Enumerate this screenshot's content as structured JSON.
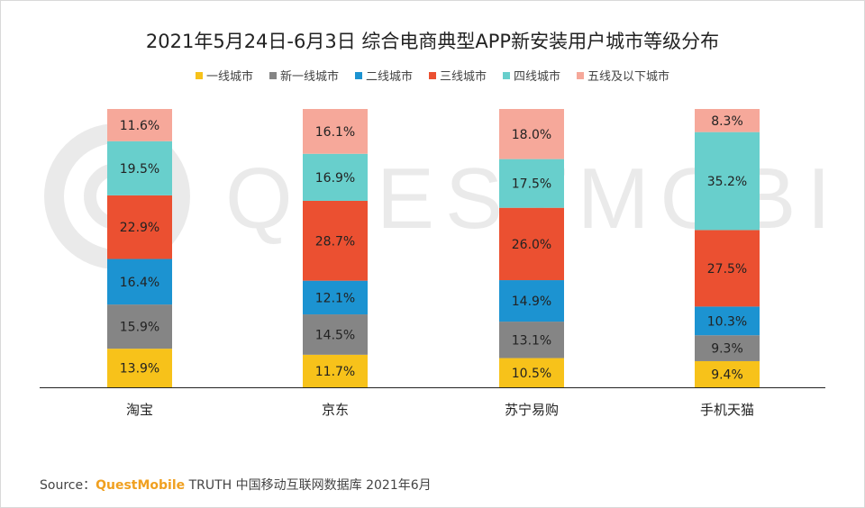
{
  "title": "2021年5月24日-6月3日 综合电商典型APP新安装用户城市等级分布",
  "source": {
    "prefix": "Source：",
    "brand": "QuestMobile",
    "rest": " TRUTH 中国移动互联网数据库 2021年6月"
  },
  "watermark": "QUESTMOBILE",
  "chart_data": {
    "type": "bar",
    "stacked": true,
    "percent": true,
    "categories": [
      "淘宝",
      "京东",
      "苏宁易购",
      "手机天猫"
    ],
    "series": [
      {
        "name": "一线城市",
        "color": "#f7c21a",
        "values": [
          13.9,
          11.7,
          10.5,
          9.4
        ]
      },
      {
        "name": "新一线城市",
        "color": "#858585",
        "values": [
          15.9,
          14.5,
          13.1,
          9.3
        ]
      },
      {
        "name": "二线城市",
        "color": "#1c93d1",
        "values": [
          16.4,
          12.1,
          14.9,
          10.3
        ]
      },
      {
        "name": "三线城市",
        "color": "#eb5031",
        "values": [
          22.9,
          28.7,
          26.0,
          27.5
        ]
      },
      {
        "name": "四线城市",
        "color": "#68cfcc",
        "values": [
          19.5,
          16.9,
          17.5,
          35.2
        ]
      },
      {
        "name": "五线及以下城市",
        "color": "#f6a89a",
        "values": [
          11.6,
          16.1,
          18.0,
          8.3
        ]
      }
    ],
    "labels": [
      [
        "13.9%",
        "11.7%",
        "10.5%",
        "9.4%"
      ],
      [
        "15.9%",
        "14.5%",
        "13.1%",
        "9.3%"
      ],
      [
        "16.4%",
        "12.1%",
        "14.9%",
        "10.3%"
      ],
      [
        "22.9%",
        "28.7%",
        "26.0%",
        "27.5%"
      ],
      [
        "19.5%",
        "16.9%",
        "17.5%",
        "35.2%"
      ],
      [
        "11.6%",
        "16.1%",
        "18.0%",
        "8.3%"
      ]
    ]
  }
}
